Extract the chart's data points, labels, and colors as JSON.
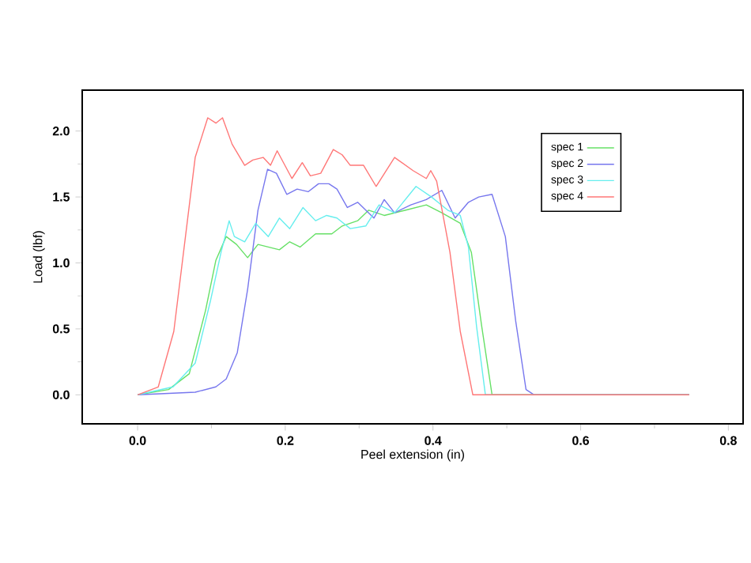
{
  "chart_data": {
    "type": "line",
    "xlabel": "Peel extension (in)",
    "ylabel": "Load (lbf)",
    "xlim": [
      -0.075,
      0.82
    ],
    "ylim": [
      -0.22,
      2.31
    ],
    "xticks": [
      {
        "value": 0,
        "label": "0.0"
      },
      {
        "value": 0.2,
        "label": "0.2"
      },
      {
        "value": 0.4,
        "label": "0.4"
      },
      {
        "value": 0.6,
        "label": "0.6"
      },
      {
        "value": 0.8,
        "label": "0.8"
      }
    ],
    "yticks": [
      {
        "value": 0,
        "label": "0.0"
      },
      {
        "value": 0.5,
        "label": "0.5"
      },
      {
        "value": 1,
        "label": "1.0"
      },
      {
        "value": 1.5,
        "label": "1.5"
      },
      {
        "value": 2,
        "label": "2.0"
      }
    ],
    "legend": "top right",
    "grid": false,
    "marker": "none",
    "line_style": "solid",
    "series": [
      {
        "name": "spec 1",
        "color": "#66e066",
        "x": [
          0,
          0.042,
          0.07,
          0.092,
          0.106,
          0.12,
          0.134,
          0.149,
          0.163,
          0.192,
          0.206,
          0.22,
          0.241,
          0.263,
          0.277,
          0.298,
          0.313,
          0.334,
          0.363,
          0.391,
          0.412,
          0.437,
          0.452,
          0.466,
          0.48,
          0.747
        ],
        "values": [
          0,
          0.04,
          0.16,
          0.64,
          1.02,
          1.2,
          1.14,
          1.04,
          1.14,
          1.1,
          1.16,
          1.12,
          1.22,
          1.22,
          1.28,
          1.32,
          1.4,
          1.36,
          1.4,
          1.44,
          1.38,
          1.3,
          1.08,
          0.52,
          0,
          0
        ]
      },
      {
        "name": "spec 2",
        "color": "#7777ee",
        "x": [
          0,
          0.078,
          0.106,
          0.12,
          0.135,
          0.149,
          0.163,
          0.176,
          0.188,
          0.202,
          0.216,
          0.231,
          0.245,
          0.259,
          0.27,
          0.284,
          0.298,
          0.32,
          0.334,
          0.348,
          0.37,
          0.391,
          0.412,
          0.43,
          0.448,
          0.462,
          0.48,
          0.498,
          0.512,
          0.526,
          0.537,
          0.747
        ],
        "values": [
          0,
          0.02,
          0.06,
          0.12,
          0.32,
          0.8,
          1.4,
          1.71,
          1.68,
          1.52,
          1.56,
          1.54,
          1.6,
          1.6,
          1.56,
          1.42,
          1.46,
          1.34,
          1.48,
          1.38,
          1.44,
          1.48,
          1.55,
          1.34,
          1.46,
          1.5,
          1.52,
          1.2,
          0.56,
          0.04,
          0,
          0
        ]
      },
      {
        "name": "spec 3",
        "color": "#66eeee",
        "x": [
          0,
          0.048,
          0.078,
          0.099,
          0.113,
          0.124,
          0.131,
          0.145,
          0.16,
          0.177,
          0.192,
          0.206,
          0.224,
          0.241,
          0.256,
          0.27,
          0.288,
          0.309,
          0.327,
          0.348,
          0.377,
          0.398,
          0.42,
          0.437,
          0.448,
          0.459,
          0.471,
          0.747
        ],
        "values": [
          0,
          0.06,
          0.24,
          0.72,
          1.08,
          1.32,
          1.2,
          1.16,
          1.3,
          1.2,
          1.34,
          1.26,
          1.42,
          1.32,
          1.36,
          1.34,
          1.26,
          1.28,
          1.44,
          1.38,
          1.58,
          1.5,
          1.4,
          1.36,
          1.12,
          0.52,
          0,
          0
        ]
      },
      {
        "name": "spec 4",
        "color": "#ff7777",
        "x": [
          0,
          0.028,
          0.049,
          0.078,
          0.095,
          0.106,
          0.115,
          0.128,
          0.145,
          0.156,
          0.17,
          0.18,
          0.189,
          0.209,
          0.223,
          0.234,
          0.248,
          0.265,
          0.277,
          0.288,
          0.306,
          0.323,
          0.348,
          0.373,
          0.391,
          0.397,
          0.405,
          0.423,
          0.437,
          0.454,
          0.747
        ],
        "values": [
          0,
          0.06,
          0.48,
          1.8,
          2.1,
          2.06,
          2.1,
          1.9,
          1.74,
          1.78,
          1.8,
          1.74,
          1.85,
          1.64,
          1.76,
          1.66,
          1.68,
          1.86,
          1.82,
          1.74,
          1.74,
          1.58,
          1.8,
          1.7,
          1.64,
          1.7,
          1.62,
          1.08,
          0.48,
          0,
          0
        ]
      }
    ]
  }
}
